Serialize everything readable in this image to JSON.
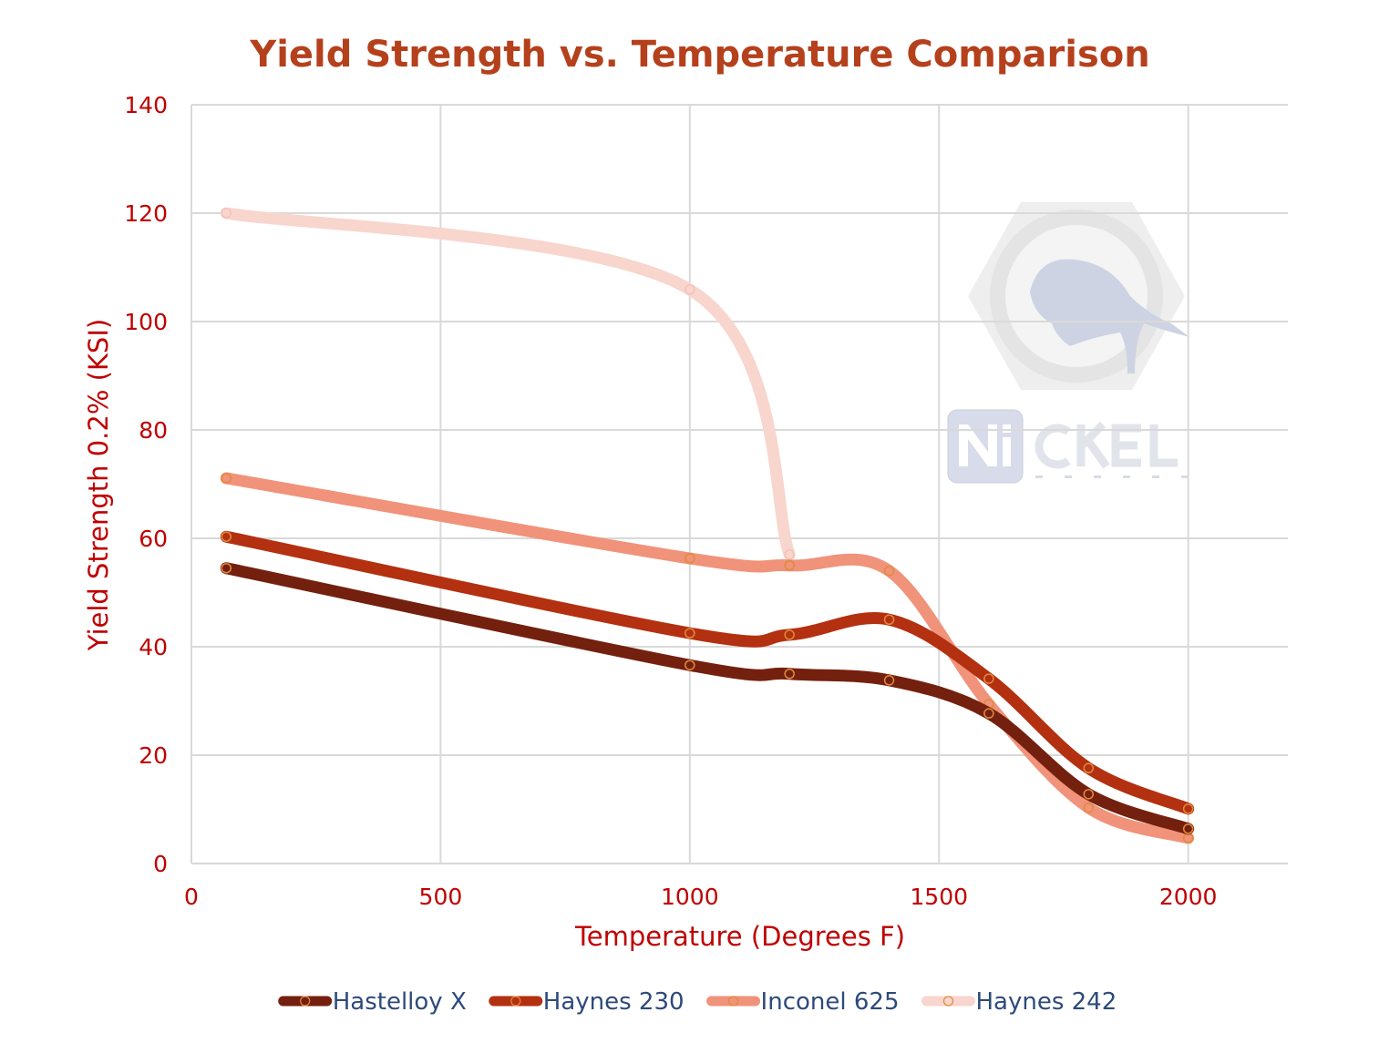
{
  "chart_data": {
    "type": "line",
    "title": "Yield Strength vs. Temperature  Comparison",
    "xlabel": "Temperature (Degrees F)",
    "ylabel": "Yield Strength 0.2% (KSI)",
    "xlim": [
      0,
      2200
    ],
    "ylim": [
      0,
      140
    ],
    "xticks": [
      0,
      500,
      1000,
      1500,
      2000
    ],
    "yticks": [
      0,
      20,
      40,
      60,
      80,
      100,
      120,
      140
    ],
    "grid": true,
    "smooth": true,
    "legend_position": "bottom",
    "series": [
      {
        "name": "Hastelloy X",
        "color": "#74200f",
        "x": [
          70,
          1000,
          1200,
          1400,
          1600,
          1800,
          2000
        ],
        "y": [
          54.5,
          36.6,
          35.0,
          33.8,
          27.7,
          12.8,
          6.4
        ]
      },
      {
        "name": "Haynes 230",
        "color": "#b33010",
        "x": [
          70,
          1000,
          1200,
          1400,
          1600,
          1800,
          2000
        ],
        "y": [
          60.3,
          42.5,
          42.2,
          45.0,
          34.1,
          17.6,
          10.1
        ]
      },
      {
        "name": "Inconel 625",
        "color": "#f0937a",
        "x": [
          70,
          1000,
          1200,
          1400,
          1600,
          1800,
          2000
        ],
        "y": [
          71.1,
          56.3,
          55.0,
          54.0,
          29.4,
          10.3,
          4.7
        ]
      },
      {
        "name": "Haynes 242",
        "color": "#f8d5cd",
        "x": [
          70,
          1000,
          1200
        ],
        "y": [
          120,
          105.9,
          57.0
        ]
      }
    ],
    "colors": {
      "title": "#b5401c",
      "axis_text": "#c00000",
      "legend_text": "#2e4a7a",
      "grid": "#d9d9d9",
      "marker_ring": "#e08a3a"
    }
  },
  "watermark": {
    "brand": "NiCKEL",
    "sub": "SYSTEMS"
  }
}
